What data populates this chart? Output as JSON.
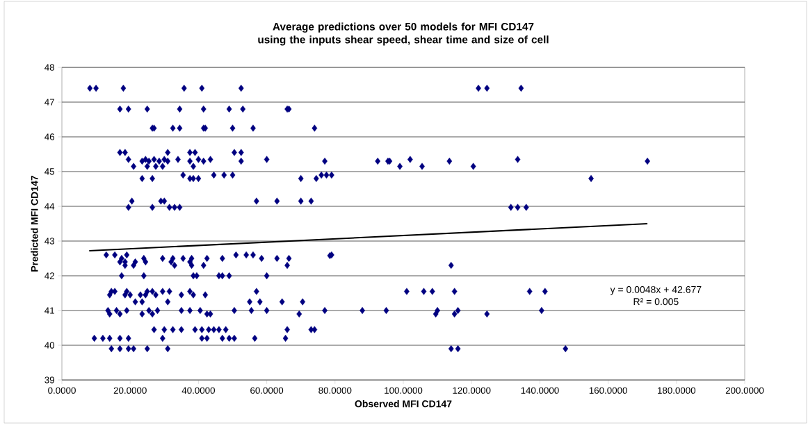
{
  "chart_data": {
    "type": "scatter",
    "title": "Average predictions over 50 models for MFI CD147 using the inputs shear speed, shear time and size of cell",
    "xlabel": "Observed MFI CD147",
    "ylabel": "Predicted MFI CD147",
    "xlim": [
      0,
      200
    ],
    "ylim": [
      39,
      48
    ],
    "xticks": [
      {
        "value": 0,
        "label": "0.0000"
      },
      {
        "value": 20,
        "label": "20.0000"
      },
      {
        "value": 40,
        "label": "40.0000"
      },
      {
        "value": 60,
        "label": "60.0000"
      },
      {
        "value": 80,
        "label": "80.0000"
      },
      {
        "value": 100,
        "label": "100.0000"
      },
      {
        "value": 120,
        "label": "120.0000"
      },
      {
        "value": 140,
        "label": "140.0000"
      },
      {
        "value": 160,
        "label": "160.0000"
      },
      {
        "value": 180,
        "label": "180.0000"
      },
      {
        "value": 200,
        "label": "200.0000"
      }
    ],
    "yticks": [
      39,
      40,
      41,
      42,
      43,
      44,
      45,
      46,
      47,
      48
    ],
    "grid": "y",
    "marker": "diamond",
    "annotations": [
      "y = 0.0048x + 42.677",
      "R² = 0.005"
    ],
    "series": [
      {
        "type": "scatter",
        "color": "#000080",
        "x": [
          8.2,
          10,
          18,
          35.8,
          41,
          52.5,
          122,
          124.5,
          134.5,
          17,
          19.5,
          25,
          34.5,
          41.5,
          49,
          53,
          66,
          66.5,
          26.5,
          27,
          32.5,
          34.5,
          41.5,
          42,
          50,
          56,
          74,
          17,
          18.5,
          31,
          37.5,
          39,
          50.5,
          52.5,
          19.5,
          23.5,
          24.5,
          25.5,
          27,
          28.5,
          30,
          31,
          34,
          37.5,
          40,
          41.5,
          43.5,
          52.5,
          60,
          77,
          92.5,
          96,
          102,
          113.5,
          133.5,
          171.5,
          95.5,
          21,
          25,
          27.5,
          29.5,
          38.5,
          99,
          105.5,
          120.5,
          35.5,
          44.5,
          47.5,
          50,
          76,
          77.5,
          79,
          23.5,
          26.5,
          37.5,
          38.5,
          40,
          70,
          74.5,
          155,
          20.5,
          29,
          30,
          57,
          63,
          70,
          73,
          19.5,
          26.5,
          31.5,
          33,
          34.5,
          131.5,
          133.5,
          136,
          13,
          15.5,
          19,
          51,
          54,
          56,
          79,
          78.5,
          17.5,
          24,
          29.5,
          32.5,
          35.5,
          38,
          42.5,
          47,
          58.5,
          63,
          66.5,
          17,
          18.5,
          21.5,
          24.5,
          32,
          37.5,
          18.5,
          21,
          33,
          38,
          41.5,
          66,
          114,
          17.5,
          24,
          38.5,
          39.5,
          46,
          47,
          49,
          60,
          14.5,
          15.5,
          19,
          25,
          26.5,
          29.5,
          31.5,
          37.5,
          57,
          101,
          106,
          108.5,
          115,
          137,
          141.5,
          14,
          18.5,
          20,
          23,
          24.5,
          27.5,
          35,
          38.5,
          42,
          21.5,
          23.5,
          31,
          55,
          58,
          64.5,
          70.5,
          13.5,
          16,
          19,
          25.5,
          28,
          35,
          37.5,
          40.5,
          50.5,
          55.5,
          60,
          77,
          88,
          95,
          110,
          116,
          140.5,
          14,
          17,
          23.5,
          26.5,
          42.5,
          43.5,
          69.5,
          109.5,
          115,
          124.5,
          27,
          30,
          32.5,
          35,
          39,
          41,
          43,
          44.5,
          46,
          48,
          66,
          73,
          74,
          9.5,
          12,
          14,
          17,
          19.5,
          29.5,
          41,
          42.5,
          47,
          49,
          50.5,
          65.5,
          56.5,
          14.5,
          17,
          19.5,
          21,
          25,
          31,
          114,
          116,
          147.5
        ],
        "values": [
          47.4,
          47.4,
          47.4,
          47.4,
          47.4,
          47.4,
          47.4,
          47.4,
          47.4,
          46.8,
          46.8,
          46.8,
          46.8,
          46.8,
          46.8,
          46.8,
          46.8,
          46.8,
          46.25,
          46.25,
          46.25,
          46.25,
          46.25,
          46.25,
          46.25,
          46.25,
          46.25,
          45.55,
          45.55,
          45.55,
          45.55,
          45.55,
          45.55,
          45.55,
          45.35,
          45.3,
          45.35,
          45.3,
          45.35,
          45.3,
          45.35,
          45.3,
          45.35,
          45.3,
          45.35,
          45.3,
          45.35,
          45.3,
          45.35,
          45.3,
          45.3,
          45.3,
          45.35,
          45.3,
          45.35,
          45.3,
          45.3,
          45.15,
          45.15,
          45.15,
          45.15,
          45.15,
          45.15,
          45.15,
          45.15,
          44.9,
          44.9,
          44.9,
          44.9,
          44.9,
          44.9,
          44.9,
          44.8,
          44.8,
          44.8,
          44.8,
          44.8,
          44.8,
          44.8,
          44.8,
          44.15,
          44.15,
          44.15,
          44.15,
          44.15,
          44.15,
          44.15,
          43.97,
          43.97,
          43.97,
          43.97,
          43.97,
          43.97,
          43.97,
          43.97,
          42.6,
          42.6,
          42.6,
          42.6,
          42.6,
          42.6,
          42.6,
          42.58,
          42.5,
          42.5,
          42.5,
          42.5,
          42.5,
          42.5,
          42.5,
          42.5,
          42.5,
          42.5,
          42.5,
          42.4,
          42.4,
          42.4,
          42.4,
          42.4,
          42.4,
          42.3,
          42.3,
          42.3,
          42.3,
          42.3,
          42.3,
          42.3,
          42.0,
          42.0,
          42.0,
          42.0,
          42.0,
          42.0,
          42.0,
          42.0,
          41.55,
          41.55,
          41.55,
          41.55,
          41.55,
          41.55,
          41.55,
          41.55,
          41.55,
          41.55,
          41.55,
          41.55,
          41.55,
          41.55,
          41.55,
          41.45,
          41.45,
          41.45,
          41.45,
          41.45,
          41.45,
          41.45,
          41.45,
          41.45,
          41.25,
          41.25,
          41.25,
          41.25,
          41.25,
          41.25,
          41.25,
          41.0,
          41.0,
          41.0,
          41.0,
          41.0,
          41.0,
          41.0,
          41.0,
          41.0,
          41.0,
          41.0,
          41.0,
          41.0,
          41.0,
          41.0,
          41.0,
          41.0,
          40.9,
          40.9,
          40.9,
          40.9,
          40.9,
          40.9,
          40.9,
          40.9,
          40.9,
          40.9,
          40.45,
          40.45,
          40.45,
          40.45,
          40.45,
          40.45,
          40.45,
          40.45,
          40.45,
          40.45,
          40.45,
          40.45,
          40.45,
          40.2,
          40.2,
          40.2,
          40.2,
          40.2,
          40.2,
          40.2,
          40.2,
          40.2,
          40.2,
          40.2,
          40.2,
          40.2,
          39.9,
          39.9,
          39.9,
          39.9,
          39.9,
          39.9,
          39.9,
          39.9,
          39.9
        ]
      },
      {
        "type": "line",
        "color": "#000000",
        "marker": "none",
        "line_style": "solid",
        "x": [
          8,
          171.5
        ],
        "values": [
          42.72,
          43.5
        ]
      }
    ]
  }
}
